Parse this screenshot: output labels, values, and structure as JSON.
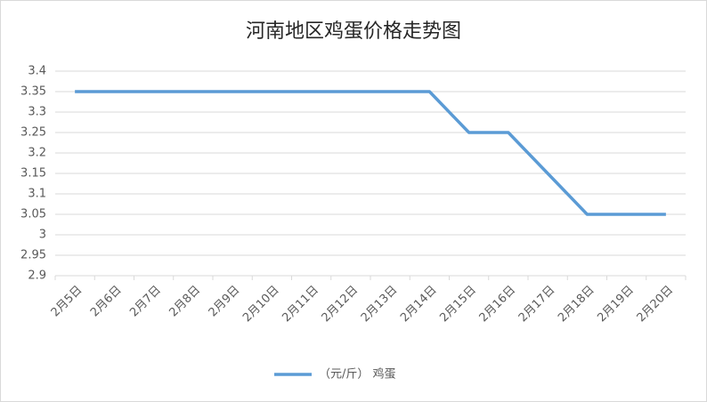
{
  "chart_data": {
    "type": "line",
    "title": "河南地区鸡蛋价格走势图",
    "categories": [
      "2月5日",
      "2月6日",
      "2月7日",
      "2月8日",
      "2月9日",
      "2月10日",
      "2月11日",
      "2月12日",
      "2月13日",
      "2月14日",
      "2月15日",
      "2月16日",
      "2月17日",
      "2月18日",
      "2月19日",
      "2月20日"
    ],
    "series": [
      {
        "name": "（元/斤） 鸡蛋",
        "color": "#5b9bd5",
        "values": [
          3.35,
          3.35,
          3.35,
          3.35,
          3.35,
          3.35,
          3.35,
          3.35,
          3.35,
          3.35,
          3.25,
          3.25,
          3.15,
          3.05,
          3.05,
          3.05
        ]
      }
    ],
    "ylim": [
      2.9,
      3.4
    ],
    "yticks": [
      2.9,
      2.95,
      3,
      3.05,
      3.1,
      3.15,
      3.2,
      3.25,
      3.3,
      3.35,
      3.4
    ],
    "grid": true,
    "legend": "bottom"
  }
}
